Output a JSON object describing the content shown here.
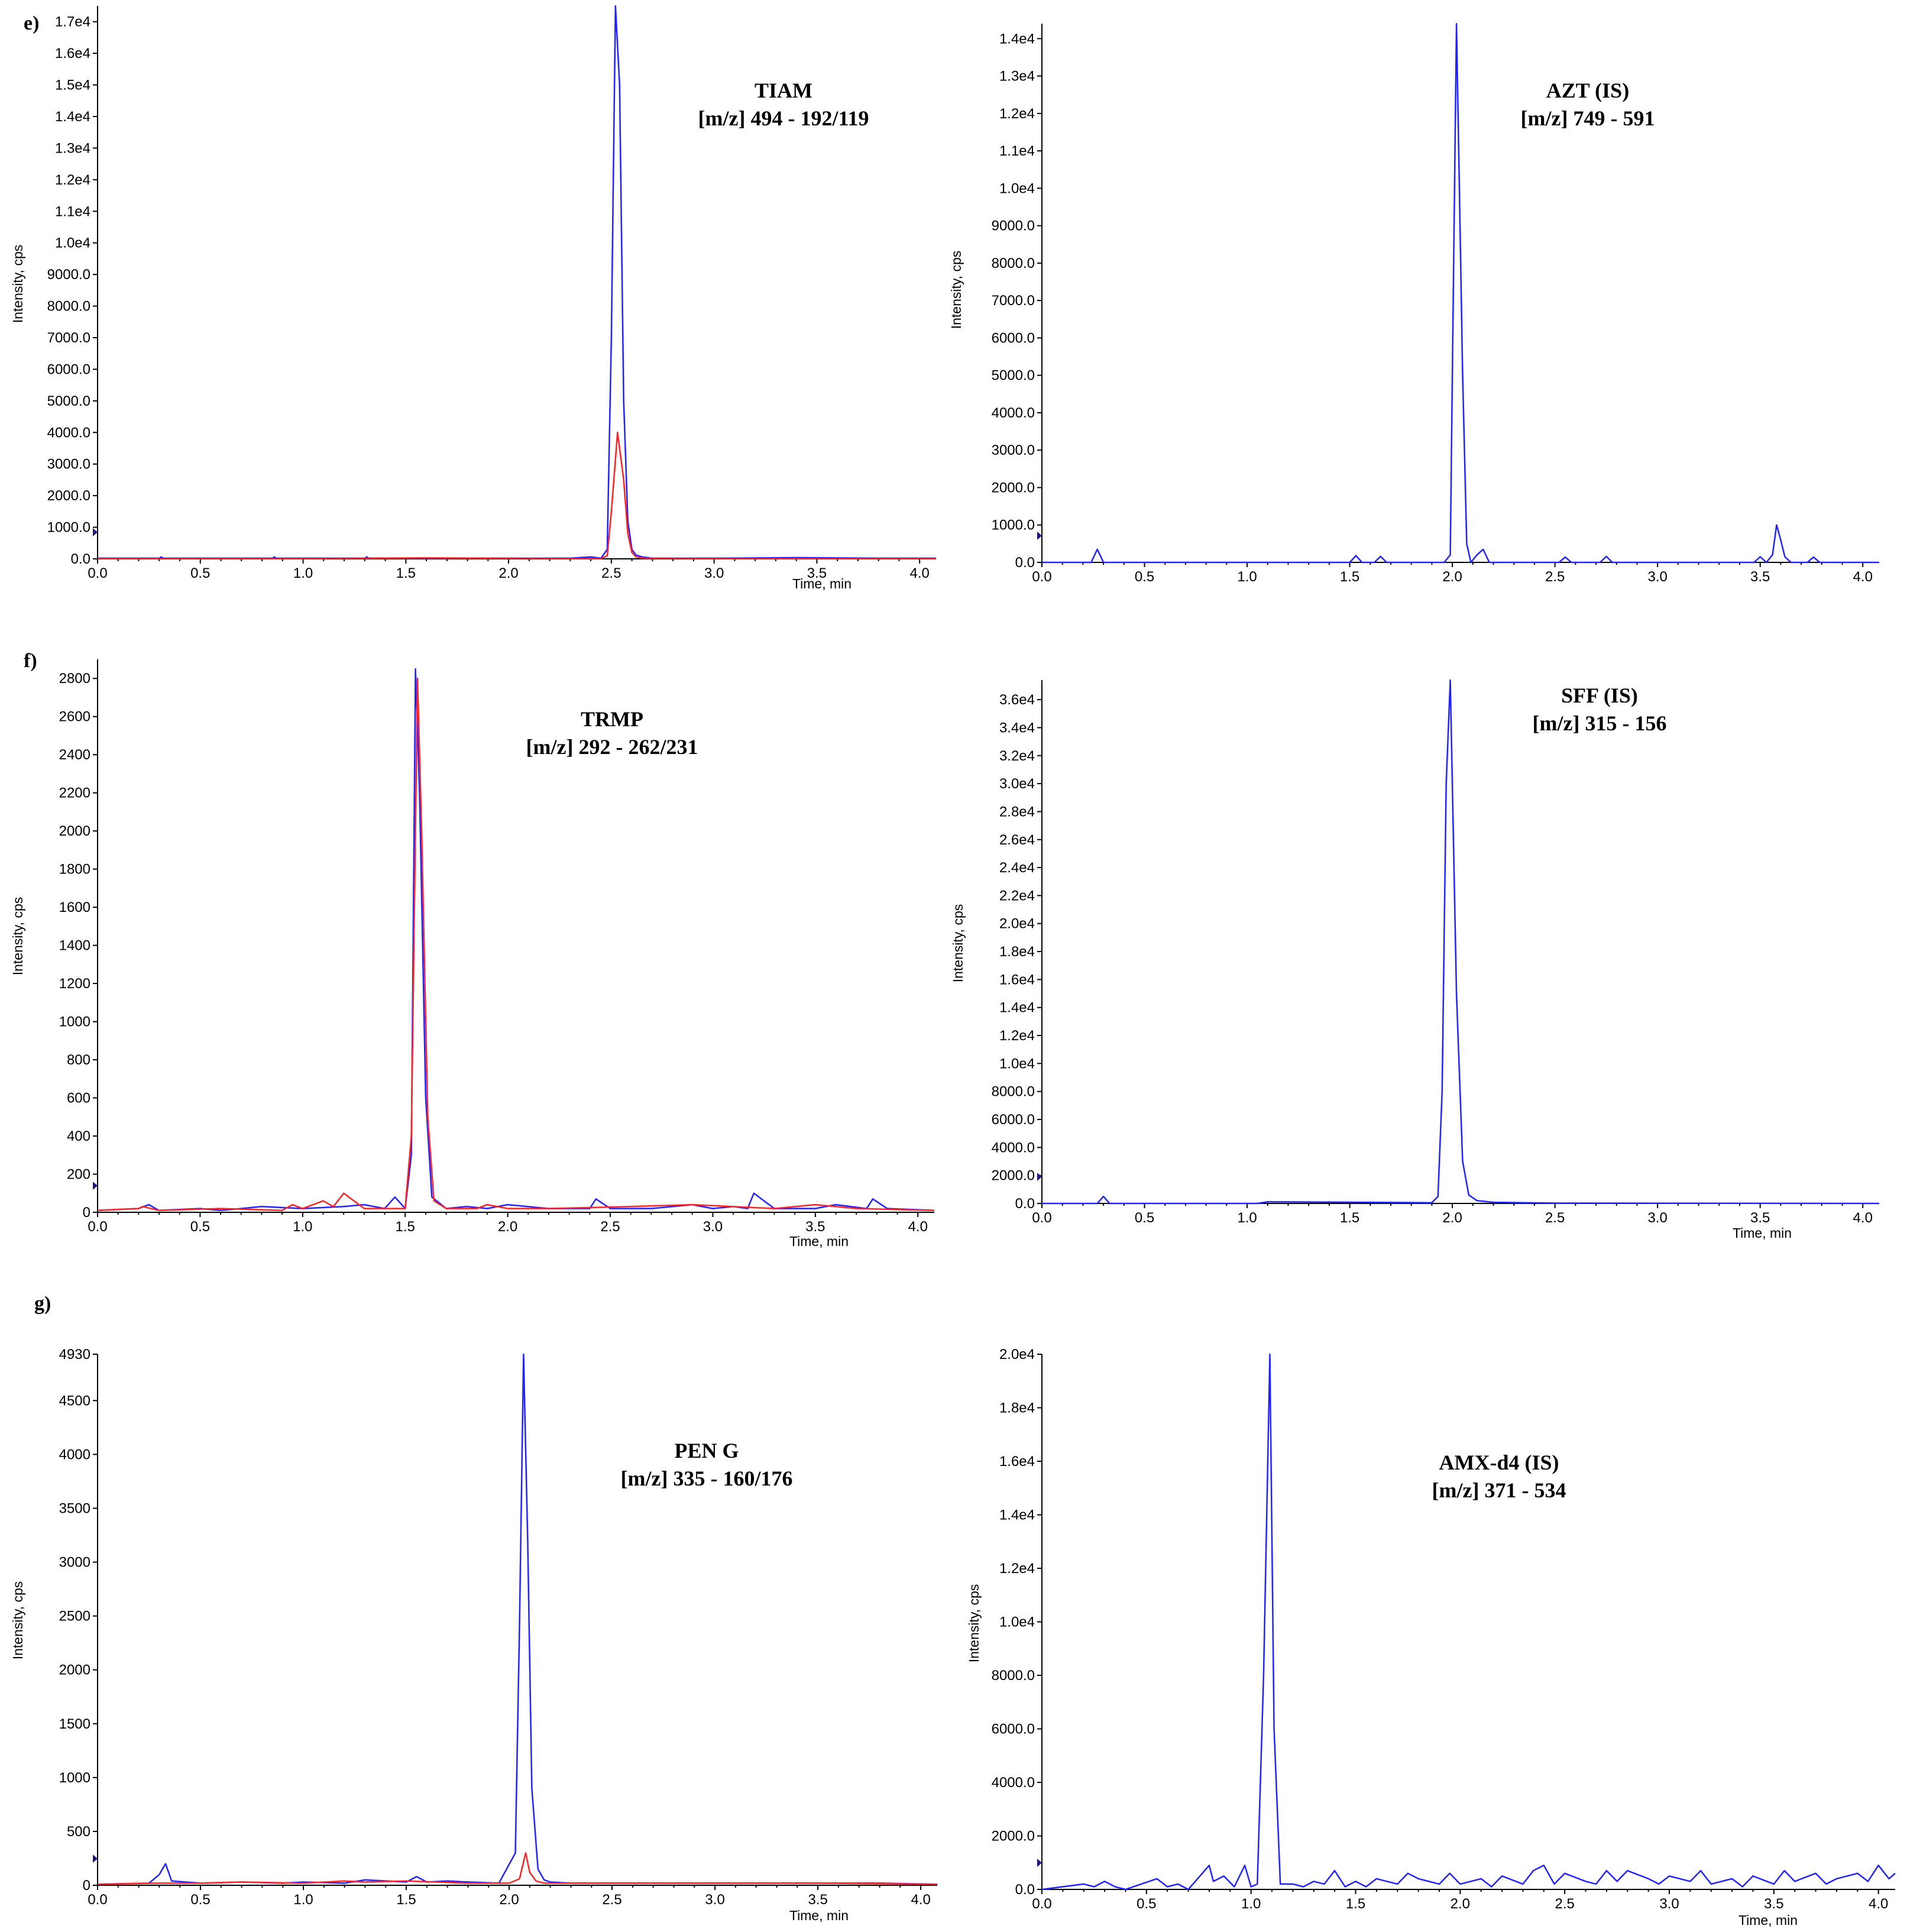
{
  "panel_labels": [
    "e)",
    "f)",
    "g)"
  ],
  "colors": {
    "blue": "#2222ff",
    "red": "#ff2222",
    "axis": "#000000",
    "marker": "#1a1a7a"
  },
  "chart_data": [
    {
      "type": "line",
      "title": "TIAM",
      "subtitle": "[m/z] 494 - 192/119",
      "xlabel": "Time, min",
      "ylabel": "Intensity, cps",
      "xlim": [
        0.0,
        4.08
      ],
      "ylim": [
        0,
        17500
      ],
      "xticks": [
        "0.0",
        "0.5",
        "1.0",
        "1.5",
        "2.0",
        "2.5",
        "3.0",
        "3.5",
        "4.0"
      ],
      "yticks": [
        "0.0",
        "1000.0",
        "2000.0",
        "3000.0",
        "4000.0",
        "5000.0",
        "6000.0",
        "7000.0",
        "8000.0",
        "9000.0",
        "1.0e4",
        "1.1e4",
        "1.2e4",
        "1.3e4",
        "1.4e4",
        "1.5e4",
        "1.6e4",
        "1.7e4"
      ],
      "yticks_values": [
        0,
        1000,
        2000,
        3000,
        4000,
        5000,
        6000,
        7000,
        8000,
        9000,
        10000,
        11000,
        12000,
        13000,
        14000,
        15000,
        16000,
        17000
      ],
      "series": [
        {
          "color": "blue",
          "x": [
            0.0,
            0.3,
            0.31,
            0.32,
            0.7,
            0.85,
            0.86,
            0.87,
            1.0,
            1.3,
            1.31,
            1.32,
            1.6,
            1.8,
            2.2,
            2.3,
            2.4,
            2.45,
            2.48,
            2.5,
            2.52,
            2.54,
            2.56,
            2.58,
            2.6,
            2.62,
            2.65,
            2.7,
            3.0,
            3.4,
            3.8,
            4.08
          ],
          "y": [
            20,
            20,
            60,
            20,
            20,
            20,
            60,
            20,
            20,
            20,
            60,
            20,
            20,
            20,
            20,
            20,
            60,
            20,
            300,
            7000,
            17500,
            15000,
            5000,
            1200,
            300,
            120,
            60,
            20,
            20,
            40,
            20,
            20
          ]
        },
        {
          "color": "red",
          "x": [
            0.0,
            0.5,
            1.0,
            1.6,
            2.3,
            2.45,
            2.48,
            2.5,
            2.53,
            2.56,
            2.58,
            2.6,
            2.62,
            2.65,
            3.0,
            3.5,
            4.08
          ],
          "y": [
            10,
            10,
            10,
            30,
            10,
            10,
            100,
            1500,
            4000,
            2500,
            800,
            200,
            60,
            20,
            10,
            10,
            10
          ]
        }
      ]
    },
    {
      "type": "line",
      "title": "AZT (IS)",
      "subtitle": "[m/z] 749 - 591",
      "xlabel": "",
      "ylabel": "Intensity, cps",
      "xlim": [
        0.0,
        4.08
      ],
      "ylim": [
        0,
        14400
      ],
      "xticks": [
        "0.0",
        "0.5",
        "1.0",
        "1.5",
        "2.0",
        "2.5",
        "3.0",
        "3.5",
        "4.0"
      ],
      "yticks": [
        "0.0",
        "1000.0",
        "2000.0",
        "3000.0",
        "4000.0",
        "5000.0",
        "6000.0",
        "7000.0",
        "8000.0",
        "9000.0",
        "1.0e4",
        "1.1e4",
        "1.2e4",
        "1.3e4",
        "1.4e4"
      ],
      "yticks_values": [
        0,
        1000,
        2000,
        3000,
        4000,
        5000,
        6000,
        7000,
        8000,
        9000,
        10000,
        11000,
        12000,
        13000,
        14000
      ],
      "series": [
        {
          "color": "blue",
          "x": [
            0.0,
            0.24,
            0.27,
            0.3,
            1.5,
            1.53,
            1.56,
            1.62,
            1.65,
            1.68,
            1.96,
            1.99,
            2.0,
            2.02,
            2.05,
            2.07,
            2.09,
            2.12,
            2.15,
            2.18,
            2.52,
            2.55,
            2.58,
            2.72,
            2.75,
            2.78,
            3.47,
            3.5,
            3.53,
            3.56,
            3.58,
            3.6,
            3.62,
            3.65,
            3.73,
            3.76,
            3.79,
            4.08
          ],
          "y": [
            0,
            0,
            350,
            0,
            0,
            180,
            0,
            0,
            160,
            0,
            0,
            200,
            5000,
            14400,
            5000,
            500,
            0,
            200,
            350,
            0,
            0,
            140,
            0,
            0,
            160,
            0,
            0,
            150,
            0,
            200,
            1000,
            600,
            150,
            0,
            0,
            140,
            0,
            0
          ]
        }
      ]
    },
    {
      "type": "line",
      "title": "TRMP",
      "subtitle": "[m/z] 292 - 262/231",
      "xlabel": "Time, min",
      "ylabel": "Intensity, cps",
      "xlim": [
        0.0,
        4.08
      ],
      "ylim": [
        0,
        2900
      ],
      "xticks": [
        "0.0",
        "0.5",
        "1.0",
        "1.5",
        "2.0",
        "2.5",
        "3.0",
        "3.5",
        "4.0"
      ],
      "yticks": [
        "0",
        "200",
        "400",
        "600",
        "800",
        "1000",
        "1200",
        "1400",
        "1600",
        "1800",
        "2000",
        "2200",
        "2400",
        "2600",
        "2800"
      ],
      "yticks_values": [
        0,
        200,
        400,
        600,
        800,
        1000,
        1200,
        1400,
        1600,
        1800,
        2000,
        2200,
        2400,
        2600,
        2800
      ],
      "series": [
        {
          "color": "blue",
          "x": [
            0.0,
            0.2,
            0.25,
            0.3,
            0.5,
            0.6,
            0.7,
            0.8,
            1.0,
            1.2,
            1.3,
            1.4,
            1.45,
            1.5,
            1.53,
            1.55,
            1.57,
            1.6,
            1.63,
            1.7,
            1.8,
            1.9,
            2.0,
            2.2,
            2.4,
            2.43,
            2.5,
            2.7,
            2.9,
            3.0,
            3.1,
            3.17,
            3.2,
            3.3,
            3.5,
            3.6,
            3.75,
            3.78,
            3.85,
            4.08
          ],
          "y": [
            10,
            20,
            40,
            10,
            20,
            10,
            20,
            30,
            20,
            30,
            40,
            20,
            80,
            20,
            300,
            2850,
            2200,
            600,
            80,
            20,
            30,
            20,
            40,
            20,
            20,
            70,
            20,
            20,
            40,
            20,
            30,
            20,
            100,
            20,
            20,
            40,
            20,
            70,
            20,
            10
          ]
        },
        {
          "color": "red",
          "x": [
            0.0,
            0.2,
            0.22,
            0.3,
            0.6,
            0.9,
            0.95,
            1.0,
            1.1,
            1.15,
            1.2,
            1.3,
            1.5,
            1.53,
            1.56,
            1.58,
            1.61,
            1.64,
            1.7,
            1.85,
            1.9,
            2.0,
            2.2,
            2.6,
            2.9,
            3.3,
            3.5,
            3.7,
            4.08
          ],
          "y": [
            10,
            20,
            30,
            10,
            20,
            10,
            40,
            20,
            60,
            30,
            100,
            20,
            20,
            400,
            2800,
            2000,
            500,
            60,
            20,
            20,
            40,
            20,
            20,
            30,
            40,
            20,
            40,
            20,
            10
          ]
        }
      ]
    },
    {
      "type": "line",
      "title": "SFF (IS)",
      "subtitle": "[m/z] 315 - 156",
      "xlabel": "Time, min",
      "ylabel": "Intensity, cps",
      "xlim": [
        0.0,
        4.08
      ],
      "ylim": [
        0,
        37400
      ],
      "xticks": [
        "0.0",
        "0.5",
        "1.0",
        "1.5",
        "2.0",
        "2.5",
        "3.0",
        "3.5",
        "4.0"
      ],
      "yticks": [
        "0.0",
        "2000.0",
        "4000.0",
        "6000.0",
        "8000.0",
        "1.0e4",
        "1.2e4",
        "1.4e4",
        "1.6e4",
        "1.8e4",
        "2.0e4",
        "2.2e4",
        "2.4e4",
        "2.6e4",
        "2.8e4",
        "3.0e4",
        "3.2e4",
        "3.4e4",
        "3.6e4"
      ],
      "yticks_values": [
        0,
        2000,
        4000,
        6000,
        8000,
        10000,
        12000,
        14000,
        16000,
        18000,
        20000,
        22000,
        24000,
        26000,
        28000,
        30000,
        32000,
        34000,
        36000
      ],
      "series": [
        {
          "color": "blue",
          "x": [
            0.0,
            0.27,
            0.3,
            0.33,
            1.05,
            1.1,
            1.9,
            1.93,
            1.95,
            1.97,
            1.99,
            2.02,
            2.05,
            2.08,
            2.12,
            2.2,
            2.5,
            4.08
          ],
          "y": [
            0,
            0,
            500,
            0,
            0,
            120,
            50,
            500,
            8000,
            30000,
            37400,
            15000,
            3000,
            600,
            200,
            80,
            20,
            0
          ]
        }
      ]
    },
    {
      "type": "line",
      "title": "PEN G",
      "subtitle": "[m/z] 335 - 160/176",
      "xlabel": "Time, min",
      "ylabel": "Intensity, cps",
      "xlim": [
        0.0,
        4.08
      ],
      "ylim": [
        0,
        4930
      ],
      "xticks": [
        "0.0",
        "0.5",
        "1.0",
        "1.5",
        "2.0",
        "2.5",
        "3.0",
        "3.5",
        "4.0"
      ],
      "yticks": [
        "0",
        "500",
        "1000",
        "1500",
        "2000",
        "2500",
        "3000",
        "3500",
        "4000",
        "4500",
        "4930"
      ],
      "yticks_values": [
        0,
        500,
        1000,
        1500,
        2000,
        2500,
        3000,
        3500,
        4000,
        4500,
        4930
      ],
      "series": [
        {
          "color": "blue",
          "x": [
            0.0,
            0.25,
            0.3,
            0.33,
            0.36,
            0.5,
            0.7,
            0.9,
            1.0,
            1.2,
            1.3,
            1.5,
            1.55,
            1.6,
            1.7,
            1.8,
            1.95,
            2.03,
            2.05,
            2.07,
            2.09,
            2.11,
            2.14,
            2.17,
            2.2,
            2.3,
            2.5,
            2.8,
            3.0,
            3.3,
            3.6,
            3.8,
            4.08
          ],
          "y": [
            10,
            20,
            100,
            200,
            40,
            20,
            30,
            20,
            30,
            20,
            50,
            30,
            80,
            30,
            40,
            30,
            20,
            300,
            2400,
            4930,
            3200,
            900,
            150,
            50,
            30,
            20,
            20,
            20,
            20,
            20,
            20,
            20,
            10
          ]
        },
        {
          "color": "red",
          "x": [
            0.0,
            0.3,
            0.5,
            0.7,
            1.0,
            1.2,
            1.3,
            1.5,
            1.8,
            2.0,
            2.05,
            2.08,
            2.1,
            2.13,
            2.17,
            2.25,
            2.5,
            3.0,
            3.5,
            4.08
          ],
          "y": [
            10,
            20,
            20,
            30,
            20,
            40,
            30,
            40,
            20,
            20,
            60,
            300,
            120,
            40,
            20,
            20,
            20,
            20,
            20,
            10
          ]
        }
      ]
    },
    {
      "type": "line",
      "title": "AMX-d4 (IS)",
      "subtitle": "[m/z] 371 - 534",
      "xlabel": "Time, min",
      "ylabel": "Intensity, cps",
      "xlim": [
        0.0,
        4.08
      ],
      "ylim": [
        0,
        20000
      ],
      "xticks": [
        "0.0",
        "0.5",
        "1.0",
        "1.5",
        "2.0",
        "2.5",
        "3.0",
        "3.5",
        "4.0"
      ],
      "yticks": [
        "0.0",
        "2000.0",
        "4000.0",
        "6000.0",
        "8000.0",
        "1.0e4",
        "1.2e4",
        "1.4e4",
        "1.6e4",
        "1.8e4",
        "2.0e4"
      ],
      "yticks_values": [
        0,
        2000,
        4000,
        6000,
        8000,
        10000,
        12000,
        14000,
        16000,
        18000,
        20000
      ],
      "series": [
        {
          "color": "blue",
          "x": [
            0.0,
            0.2,
            0.25,
            0.3,
            0.35,
            0.4,
            0.55,
            0.6,
            0.65,
            0.7,
            0.8,
            0.82,
            0.87,
            0.92,
            0.97,
            1.0,
            1.03,
            1.06,
            1.09,
            1.11,
            1.14,
            1.2,
            1.25,
            1.3,
            1.35,
            1.4,
            1.45,
            1.5,
            1.55,
            1.6,
            1.7,
            1.75,
            1.8,
            1.9,
            1.95,
            2.0,
            2.1,
            2.15,
            2.2,
            2.3,
            2.35,
            2.4,
            2.45,
            2.5,
            2.6,
            2.65,
            2.7,
            2.75,
            2.8,
            2.9,
            2.95,
            3.0,
            3.1,
            3.15,
            3.2,
            3.3,
            3.35,
            3.4,
            3.5,
            3.55,
            3.6,
            3.7,
            3.75,
            3.8,
            3.9,
            3.95,
            4.0,
            4.05,
            4.08
          ],
          "y": [
            0,
            200,
            100,
            300,
            100,
            0,
            400,
            100,
            200,
            0,
            900,
            300,
            500,
            100,
            900,
            100,
            200,
            8000,
            20000,
            6000,
            200,
            200,
            100,
            300,
            200,
            700,
            100,
            300,
            100,
            400,
            200,
            600,
            400,
            200,
            600,
            200,
            400,
            100,
            500,
            200,
            700,
            900,
            200,
            600,
            300,
            200,
            700,
            300,
            700,
            400,
            200,
            500,
            300,
            700,
            200,
            400,
            100,
            500,
            200,
            700,
            300,
            600,
            200,
            400,
            600,
            300,
            900,
            400,
            600
          ]
        }
      ]
    }
  ]
}
